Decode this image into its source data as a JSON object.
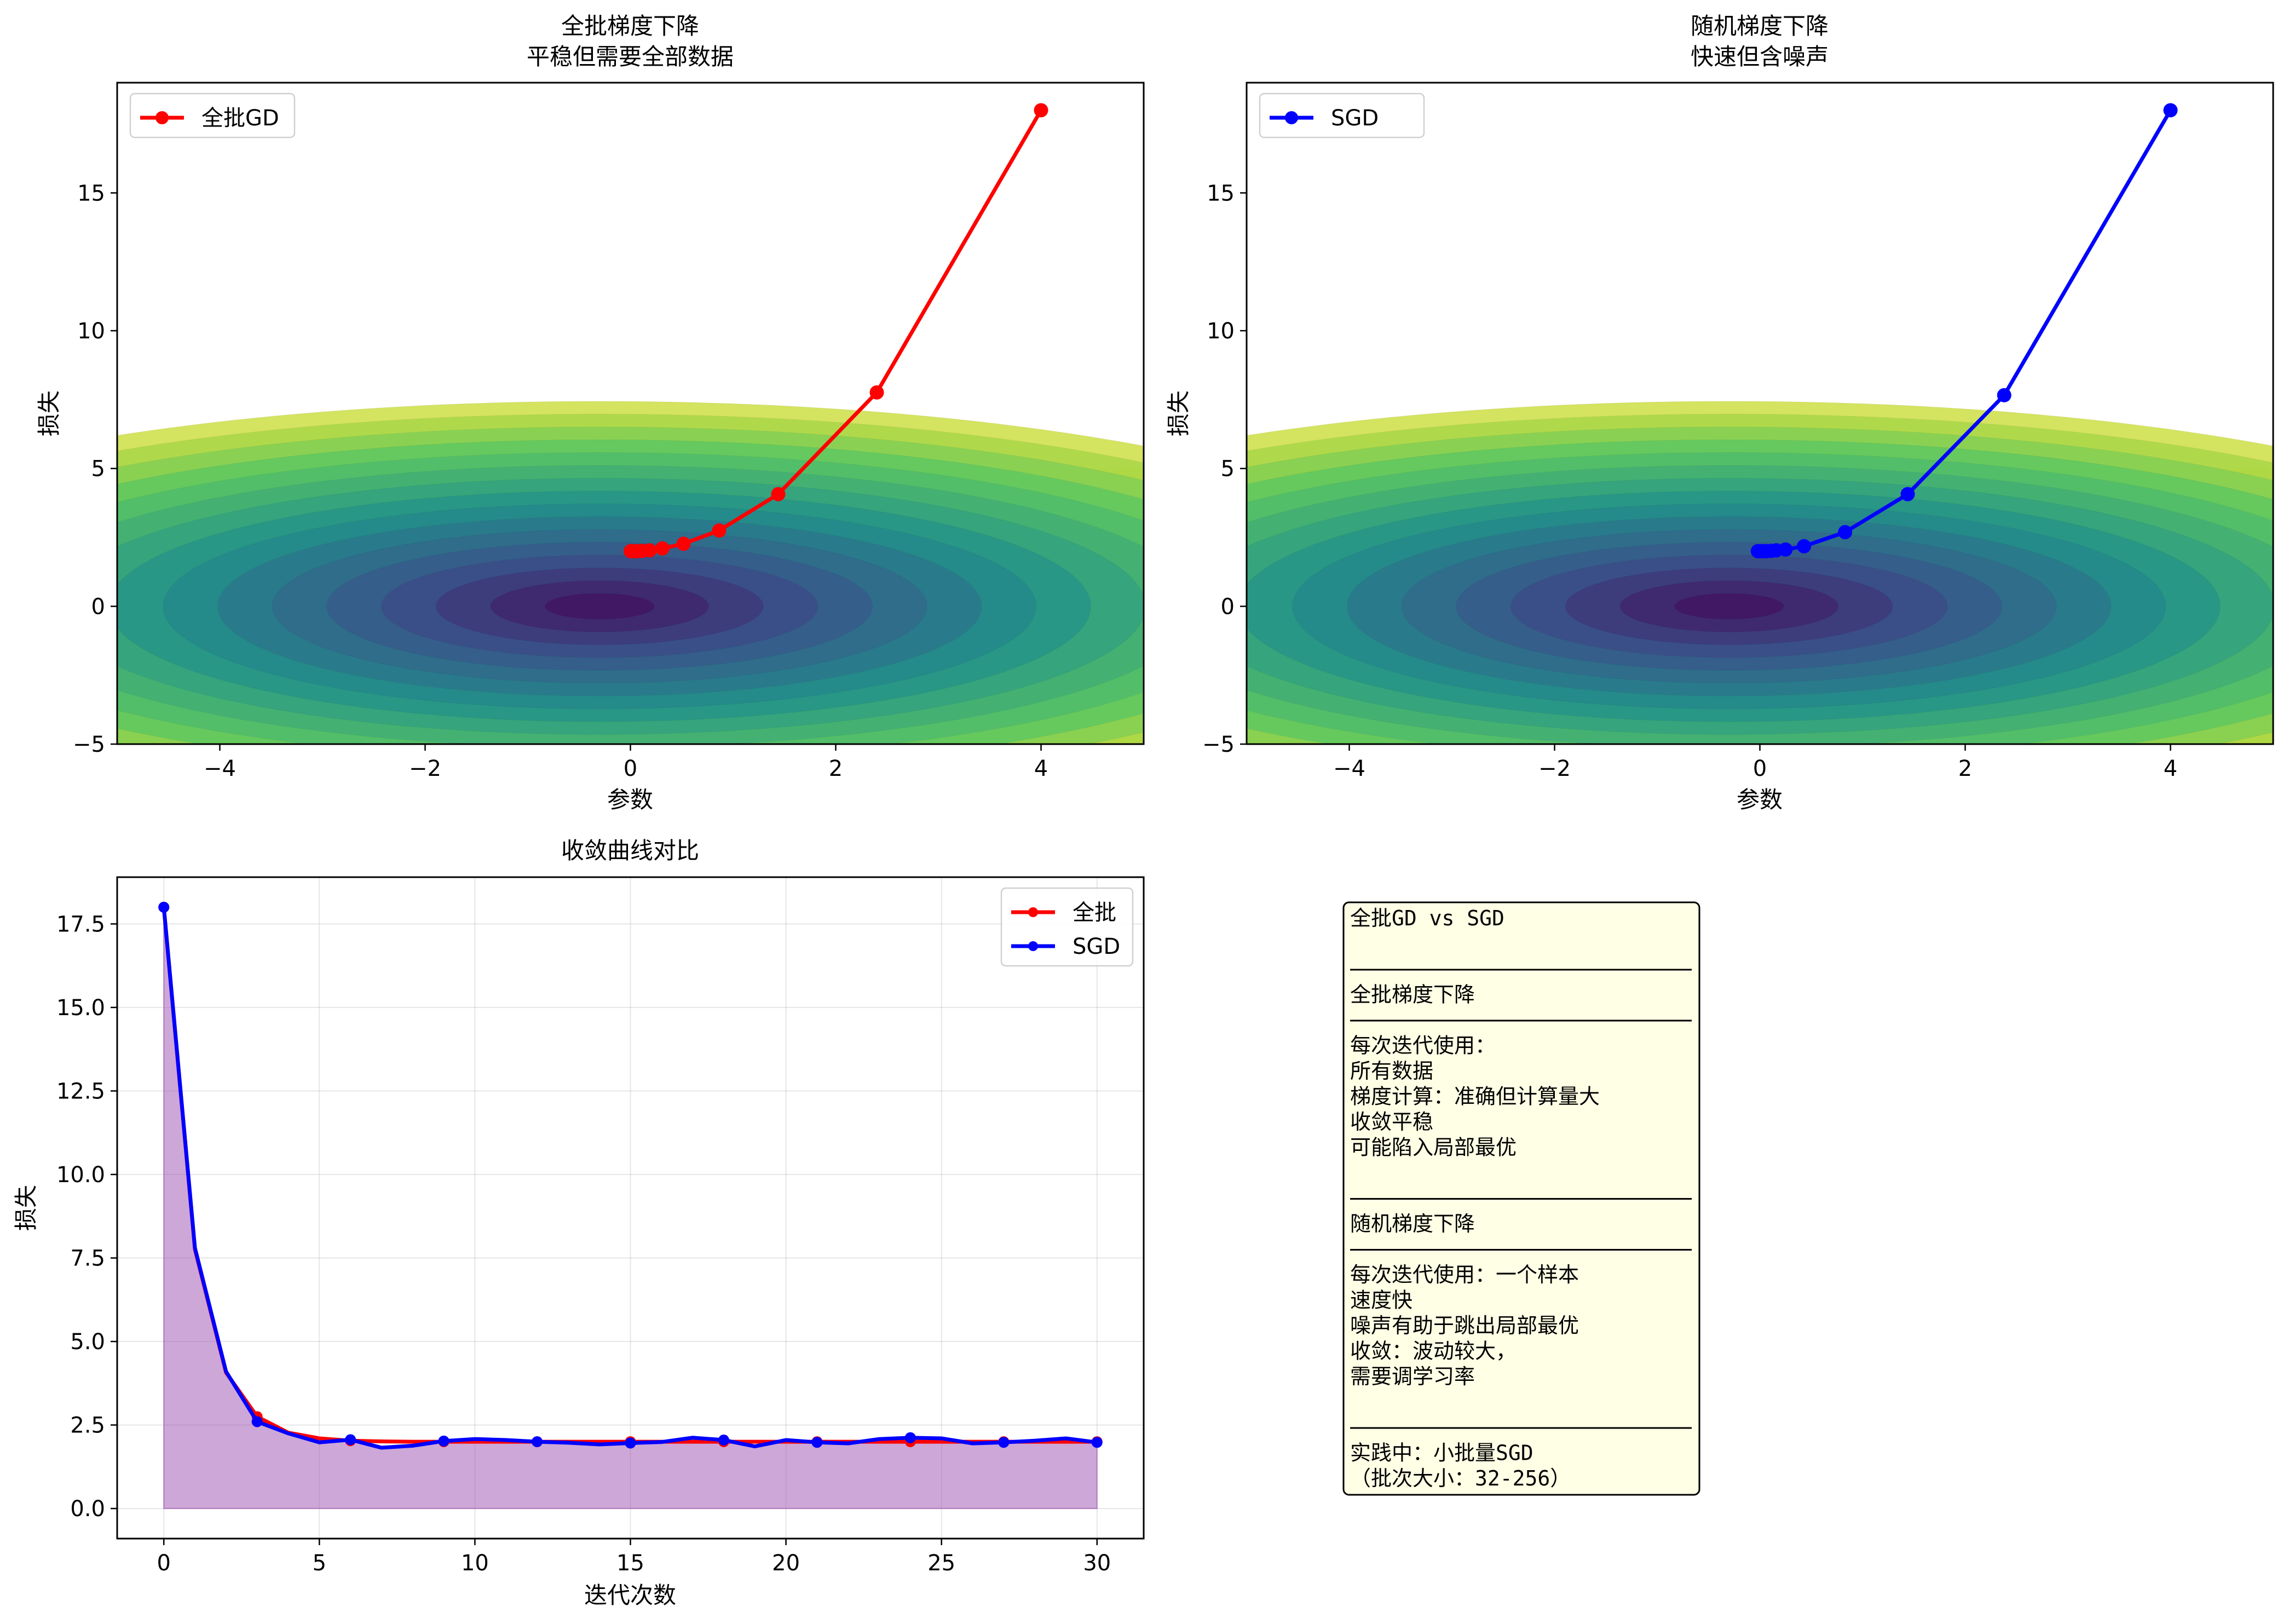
{
  "chart_data": [
    {
      "type": "line",
      "title": "全批梯度下降\n平稳但需要全部数据",
      "xlabel": "参数",
      "ylabel": "损失",
      "xlim": [
        -5,
        5
      ],
      "ylim": [
        -5,
        19
      ],
      "xticks": [
        -4,
        -2,
        0,
        2,
        4
      ],
      "yticks": [
        -5,
        0,
        5,
        10,
        15
      ],
      "legend": "top-left",
      "background": "contour of loss surface (viridis), y from -5 to 5",
      "series": [
        {
          "name": "全批GD",
          "color": "#ff0000",
          "marker": "circle",
          "x": [
            4.0,
            2.4,
            1.44,
            0.864,
            0.518,
            0.311,
            0.187,
            0.112,
            0.067,
            0.04,
            0.024,
            0.015,
            0.009,
            0.005,
            0.003
          ],
          "y": [
            18.0,
            7.76,
            4.07,
            2.75,
            2.27,
            2.1,
            2.03,
            2.01,
            2.0,
            2.0,
            2.0,
            2.0,
            2.0,
            2.0,
            2.0
          ]
        }
      ]
    },
    {
      "type": "line",
      "title": "随机梯度下降\n快速但含噪声",
      "xlabel": "参数",
      "ylabel": "损失",
      "xlim": [
        -5,
        5
      ],
      "ylim": [
        -5,
        19
      ],
      "xticks": [
        -4,
        -2,
        0,
        2,
        4
      ],
      "yticks": [
        -5,
        0,
        5,
        10,
        15
      ],
      "legend": "top-left",
      "background": "contour of loss surface (viridis), y from -5 to 5",
      "series": [
        {
          "name": "SGD",
          "color": "#0000ff",
          "marker": "circle",
          "x": [
            4.0,
            2.38,
            1.44,
            0.83,
            0.43,
            0.25,
            0.16,
            0.11,
            0.07,
            0.04,
            0.02,
            0.01,
            0.0,
            -0.02
          ],
          "y": [
            18.0,
            7.66,
            4.07,
            2.69,
            2.18,
            2.06,
            2.03,
            2.01,
            2.0,
            2.0,
            2.0,
            2.0,
            2.0,
            2.0
          ]
        }
      ]
    },
    {
      "type": "area",
      "title": "收敛曲线对比",
      "xlabel": "迭代次数",
      "ylabel": "损失",
      "xlim": [
        -1.5,
        31.5
      ],
      "ylim": [
        -0.9,
        18.9
      ],
      "xticks": [
        0,
        5,
        10,
        15,
        20,
        25,
        30
      ],
      "yticks": [
        0.0,
        2.5,
        5.0,
        7.5,
        10.0,
        12.5,
        15.0,
        17.5
      ],
      "ytick_labels": [
        "0.0",
        "2.5",
        "5.0",
        "7.5",
        "10.0",
        "12.5",
        "15.0",
        "17.5"
      ],
      "grid": true,
      "legend": "top-right",
      "fill": {
        "series": "SGD",
        "color": "#9b4fb0",
        "opacity": 0.5
      },
      "x": [
        0,
        1,
        2,
        3,
        4,
        5,
        6,
        7,
        8,
        9,
        10,
        11,
        12,
        13,
        14,
        15,
        16,
        17,
        18,
        19,
        20,
        21,
        22,
        23,
        24,
        25,
        26,
        27,
        28,
        29,
        30
      ],
      "series": [
        {
          "name": "全批",
          "color": "#ff0000",
          "marker_every": 3,
          "values": [
            18.0,
            7.76,
            4.07,
            2.75,
            2.27,
            2.1,
            2.03,
            2.01,
            2.0,
            2.0,
            2.0,
            2.0,
            2.0,
            2.0,
            2.0,
            2.0,
            2.0,
            2.0,
            2.0,
            2.0,
            2.0,
            2.0,
            2.0,
            2.0,
            2.0,
            2.0,
            2.0,
            2.0,
            2.0,
            2.0,
            2.0
          ]
        },
        {
          "name": "SGD",
          "color": "#0000ff",
          "marker_every": 3,
          "values": [
            18.0,
            7.8,
            4.1,
            2.6,
            2.25,
            1.98,
            2.06,
            1.82,
            1.88,
            2.02,
            2.08,
            2.05,
            2.0,
            1.97,
            1.92,
            1.96,
            1.99,
            2.12,
            2.05,
            1.86,
            2.05,
            1.98,
            1.95,
            2.08,
            2.12,
            2.1,
            1.95,
            1.98,
            2.03,
            2.1,
            1.98
          ]
        }
      ]
    }
  ],
  "textbox": {
    "lines": [
      "全批GD vs SGD",
      "",
      "────────────────────────",
      "全批梯度下降",
      "────────────────────────",
      "每次迭代使用：",
      "        所有数据",
      "梯度计算：准确但计算量大",
      "        收敛平稳",
      "        可能陷入局部最优",
      "",
      "────────────────────────",
      "随机梯度下降",
      "────────────────────────",
      "每次迭代使用：一个样本",
      "        速度快",
      "        噪声有助于跳出局部最优",
      "收敛：波动较大，",
      "        需要调学习率",
      "",
      "────────────────────────",
      "实践中：小批量SGD",
      "（批次大小：32-256）"
    ],
    "background": "#ffffe6",
    "border": "#000000"
  }
}
